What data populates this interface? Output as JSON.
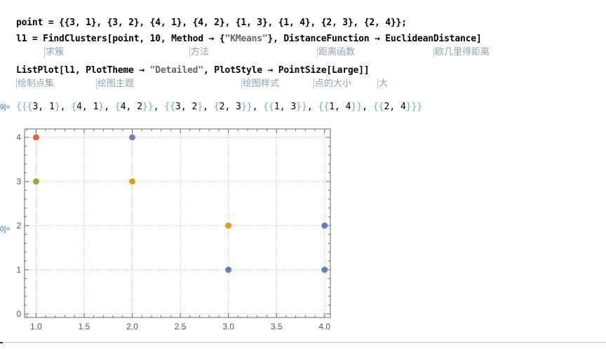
{
  "notebook": {
    "input1": {
      "code": "point = {{3, 1}, {3, 2}, {4, 1}, {4, 2}, {1, 3}, {1, 4}, {2, 3}, {2, 4}};"
    },
    "input2": {
      "code_a": "l1 = FindClusters[point, 10, Method → {",
      "code_str": "\"KMeans\"",
      "code_b": "}, DistanceFunction → EuclideanDistance]",
      "annotations": [
        "求簇",
        "方法",
        "距离函数",
        "欧几里得距离"
      ]
    },
    "input3": {
      "code_a": "ListPlot[l1, PlotTheme → ",
      "code_str": "\"Detailed\"",
      "code_b": ", PlotStyle → PointSize[Large]]",
      "annotations": [
        "绘制点集",
        "绘图主题",
        "绘图样式",
        "点的大小",
        "大"
      ]
    },
    "output1": {
      "label": "9]=",
      "text": "{{{3, 1}, {4, 1}, {4, 2}}, {{3, 2}, {2, 3}}, {{1, 3}}, {{1, 4}}, {{2, 4}}}"
    },
    "output2": {
      "label": "0]="
    }
  },
  "chart_data": {
    "type": "scatter",
    "theme": "Detailed",
    "grid": true,
    "xlim": [
      0.88,
      4.06
    ],
    "ylim": [
      -0.08,
      4.19
    ],
    "xticks": [
      "1.0",
      "1.5",
      "2.0",
      "2.5",
      "3.0",
      "3.5",
      "4.0"
    ],
    "yticks": [
      "0",
      "1",
      "2",
      "3",
      "4"
    ],
    "series": [
      {
        "color": "#5e81b5",
        "points": [
          [
            3,
            1
          ],
          [
            4,
            1
          ],
          [
            4,
            2
          ]
        ]
      },
      {
        "color": "#e19c24",
        "points": [
          [
            3,
            2
          ],
          [
            2,
            3
          ]
        ]
      },
      {
        "color": "#8fb032",
        "points": [
          [
            1,
            3
          ]
        ]
      },
      {
        "color": "#eb6235",
        "points": [
          [
            1,
            4
          ]
        ]
      },
      {
        "color": "#8778b3",
        "points": [
          [
            2,
            4
          ]
        ]
      }
    ]
  }
}
